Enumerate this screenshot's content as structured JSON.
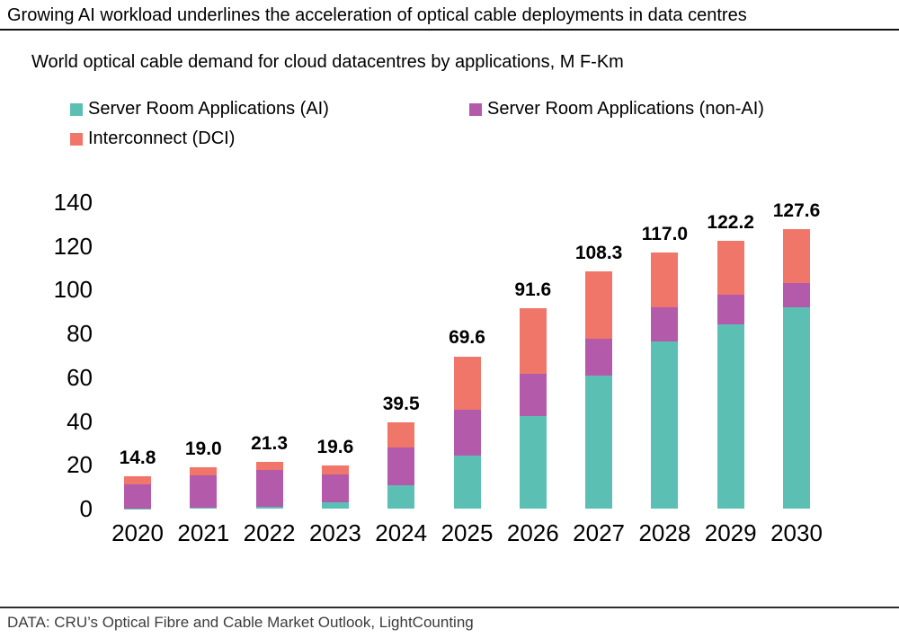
{
  "header": {
    "title": "Growing AI workload underlines the acceleration of optical cable deployments in data centres"
  },
  "subtitle": "World optical cable demand for cloud datacentres by applications, M F-Km",
  "footer": {
    "source": "DATA: CRU’s Optical Fibre and Cable Market Outlook, LightCounting"
  },
  "colors": {
    "ai": "#5CBFB4",
    "non_ai": "#B45AAB",
    "dci": "#EF7668",
    "text": "#000000",
    "footer_text": "#3d3d3d"
  },
  "chart_data": {
    "type": "bar",
    "stacked": true,
    "title": "World optical cable demand for cloud datacentres by applications, M F-Km",
    "xlabel": "",
    "ylabel": "",
    "categories": [
      "2020",
      "2021",
      "2022",
      "2023",
      "2024",
      "2025",
      "2026",
      "2027",
      "2028",
      "2029",
      "2030"
    ],
    "series": [
      {
        "name": "Server Room Applications (AI)",
        "color_key": "ai",
        "values": [
          0.1,
          0.5,
          0.9,
          3.0,
          10.5,
          24.4,
          42.4,
          60.6,
          76.4,
          84.2,
          91.8
        ]
      },
      {
        "name": "Server Room Applications (non-AI)",
        "color_key": "non_ai",
        "values": [
          11.2,
          14.6,
          16.6,
          12.7,
          17.5,
          20.6,
          19.2,
          16.9,
          15.4,
          13.5,
          11.2
        ]
      },
      {
        "name": "Interconnect (DCI)",
        "color_key": "dci",
        "values": [
          3.5,
          3.9,
          3.8,
          3.9,
          11.5,
          24.6,
          30.0,
          30.8,
          25.2,
          24.5,
          24.6
        ]
      }
    ],
    "totals": [
      14.8,
      19.0,
      21.3,
      19.6,
      39.5,
      69.6,
      91.6,
      108.3,
      117.0,
      122.2,
      127.6
    ],
    "total_label_decimals": 1,
    "y_axis": {
      "min": 0,
      "max": 140,
      "step": 20
    },
    "grid": false,
    "legend_position": "top"
  }
}
